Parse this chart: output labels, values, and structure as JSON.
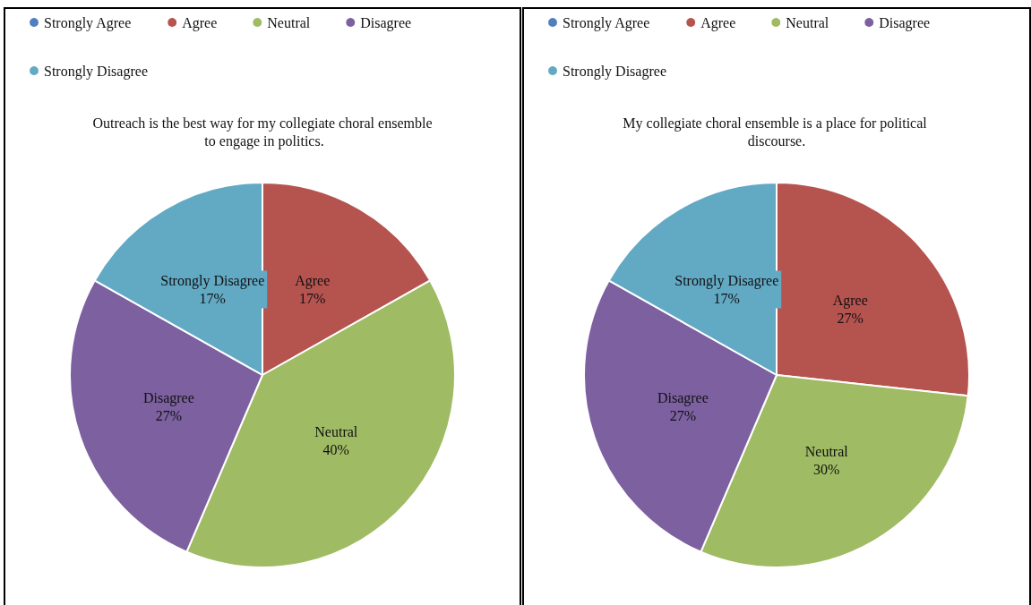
{
  "chart_data": [
    {
      "type": "pie",
      "title": "Outreach is the best way for my collegiate choral ensemble to engage in politics.",
      "categories": [
        "Strongly Agree",
        "Agree",
        "Neutral",
        "Disagree",
        "Strongly Disagree"
      ],
      "values": [
        0,
        17,
        40,
        27,
        17
      ],
      "value_labels": [
        null,
        "17%",
        "40%",
        "27%",
        "17%"
      ],
      "colors": [
        "#4f7fc0",
        "#b5534f",
        "#9fbb63",
        "#7c60a0",
        "#62a9c4"
      ],
      "legend": "top left"
    },
    {
      "type": "pie",
      "title": "My collegiate choral ensemble is a place for political discourse.",
      "categories": [
        "Strongly Agree",
        "Agree",
        "Neutral",
        "Disagree",
        "Strongly Disagree"
      ],
      "values": [
        0,
        27,
        30,
        27,
        17
      ],
      "value_labels": [
        null,
        "27%",
        "30%",
        "27%",
        "17%"
      ],
      "colors": [
        "#4f7fc0",
        "#b5534f",
        "#9fbb63",
        "#7c60a0",
        "#62a9c4"
      ],
      "legend": "top left"
    }
  ]
}
